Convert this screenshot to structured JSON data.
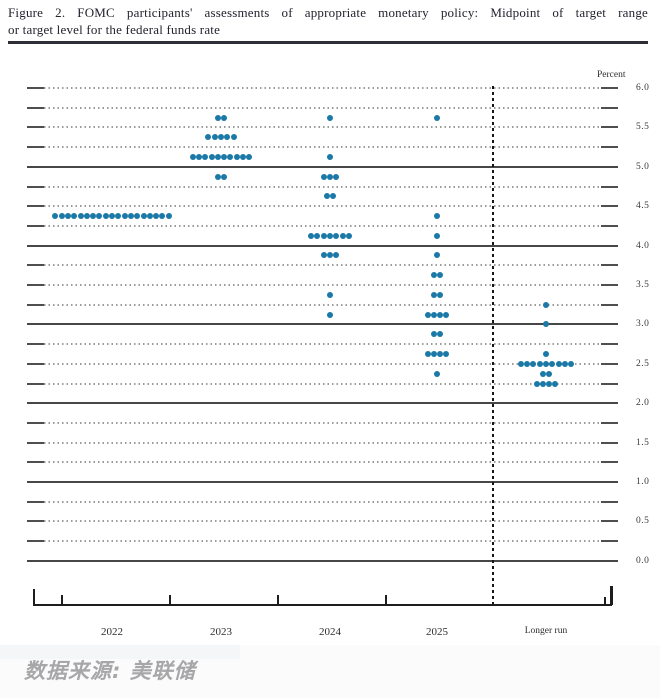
{
  "figure": {
    "title_line1": "Figure 2.  FOMC participants' assessments of appropriate monetary policy:  Midpoint of target range",
    "title_line2": "or target level for the federal funds rate"
  },
  "source_note": "数据来源: 美联储",
  "chart_data": {
    "type": "scatter",
    "title": "FOMC participants' assessments of appropriate monetary policy: Midpoint of target range or target level for the federal funds rate",
    "ylabel": "Percent",
    "xlabel": "",
    "ylim": [
      0.0,
      6.0
    ],
    "y_grid_step": 0.25,
    "y_label_step": 0.5,
    "solid_gridlines_at": [
      0.0,
      1.0,
      2.0,
      3.0,
      4.0,
      5.0
    ],
    "y_axis_labels": [
      "6.0",
      "5.5",
      "5.0",
      "4.5",
      "4.0",
      "3.5",
      "3.0",
      "2.5",
      "2.0",
      "1.5",
      "1.0",
      "0.5",
      "0.0"
    ],
    "grid": true,
    "legend_position": "none",
    "dot_color": "#1a79a7",
    "categories": [
      "2022",
      "2023",
      "2024",
      "2025",
      "Longer run"
    ],
    "series": [
      {
        "name": "2022",
        "dots": [
          {
            "rate": 4.375,
            "count": 19
          }
        ]
      },
      {
        "name": "2023",
        "dots": [
          {
            "rate": 5.625,
            "count": 2
          },
          {
            "rate": 5.375,
            "count": 5
          },
          {
            "rate": 5.125,
            "count": 10
          },
          {
            "rate": 4.875,
            "count": 2
          }
        ]
      },
      {
        "name": "2024",
        "dots": [
          {
            "rate": 5.625,
            "count": 1
          },
          {
            "rate": 5.125,
            "count": 1
          },
          {
            "rate": 4.875,
            "count": 3
          },
          {
            "rate": 4.625,
            "count": 2
          },
          {
            "rate": 4.125,
            "count": 7
          },
          {
            "rate": 3.875,
            "count": 3
          },
          {
            "rate": 3.375,
            "count": 1
          },
          {
            "rate": 3.125,
            "count": 1
          }
        ]
      },
      {
        "name": "2025",
        "dots": [
          {
            "rate": 5.625,
            "count": 1
          },
          {
            "rate": 4.375,
            "count": 1
          },
          {
            "rate": 4.125,
            "count": 1
          },
          {
            "rate": 3.875,
            "count": 1
          },
          {
            "rate": 3.625,
            "count": 2
          },
          {
            "rate": 3.375,
            "count": 2
          },
          {
            "rate": 3.125,
            "count": 4
          },
          {
            "rate": 2.875,
            "count": 2
          },
          {
            "rate": 2.625,
            "count": 4
          },
          {
            "rate": 2.375,
            "count": 1
          }
        ]
      },
      {
        "name": "Longer run",
        "dots": [
          {
            "rate": 3.25,
            "count": 1
          },
          {
            "rate": 3.0,
            "count": 1
          },
          {
            "rate": 2.625,
            "count": 1
          },
          {
            "rate": 2.5,
            "count": 9
          },
          {
            "rate": 2.375,
            "count": 2
          },
          {
            "rate": 2.25,
            "count": 4
          }
        ]
      }
    ]
  }
}
